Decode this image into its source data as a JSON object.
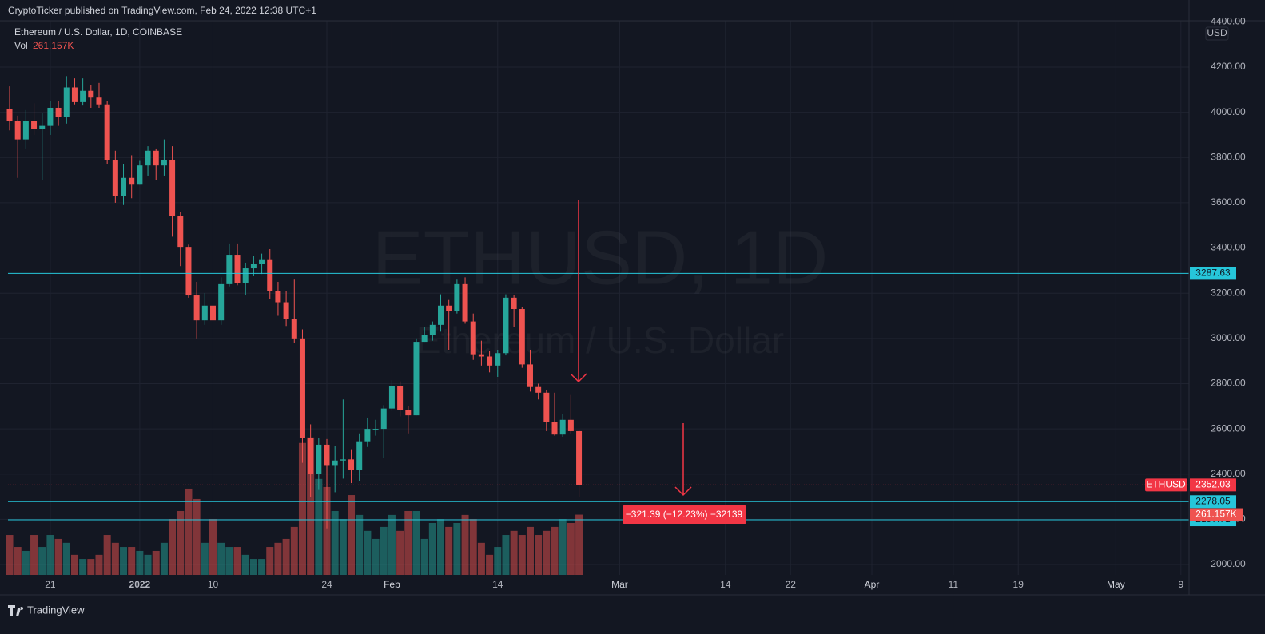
{
  "header": {
    "published": "CryptoTicker published on TradingView.com, Feb 24, 2022 12:38 UTC+1"
  },
  "footer": {
    "brand": "TradingView"
  },
  "chart_data": {
    "type": "candlestick",
    "title": "Ethereum / U.S. Dollar, 1D, COINBASE",
    "watermark": {
      "symbol": "ETHUSD, 1D",
      "name": "Ethereum / U.S. Dollar"
    },
    "y_unit": "USD",
    "up_color": "#26a69a",
    "down_color": "#ef5350",
    "x": [
      0,
      1,
      2,
      3,
      4,
      5,
      6,
      7,
      8,
      9,
      10,
      11,
      12,
      13,
      14,
      15,
      16,
      17,
      18,
      19,
      20,
      21,
      22,
      23,
      24,
      25,
      26,
      27,
      28,
      29,
      30,
      31,
      32,
      33,
      34,
      35,
      36,
      37,
      38,
      39,
      40,
      41,
      42,
      43,
      44,
      45,
      46,
      47,
      48,
      49,
      50,
      51,
      52,
      53,
      54,
      55,
      56,
      57,
      58,
      59,
      60,
      61,
      62,
      63,
      64,
      65,
      66,
      67,
      68,
      69,
      70
    ],
    "open": [
      4015,
      3960,
      3880,
      3960,
      3925,
      3940,
      4020,
      3980,
      4110,
      4045,
      4095,
      4065,
      4035,
      3790,
      3630,
      3710,
      3680,
      3765,
      3830,
      3765,
      3790,
      3540,
      3405,
      3190,
      3080,
      3145,
      3080,
      3240,
      3370,
      3245,
      3310,
      3330,
      3350,
      3210,
      3160,
      3085,
      3000,
      2560,
      2400,
      2530,
      2440,
      2460,
      2465,
      2420,
      2545,
      2600,
      2600,
      2690,
      2790,
      2685,
      2660,
      2985,
      3015,
      3060,
      3145,
      3120,
      3240,
      3075,
      2930,
      2920,
      2880,
      2935,
      3180,
      3130,
      2885,
      2785,
      2760,
      2630,
      2575,
      2640,
      2590
    ],
    "high": [
      4115,
      3985,
      4010,
      4040,
      3995,
      4050,
      4050,
      4160,
      4150,
      4150,
      4120,
      4130,
      4050,
      3830,
      3770,
      3810,
      3785,
      3850,
      3840,
      3880,
      3850,
      3560,
      3415,
      3250,
      3200,
      3160,
      3270,
      3420,
      3420,
      3335,
      3365,
      3375,
      3395,
      3250,
      3210,
      3260,
      3040,
      2620,
      2560,
      2555,
      2525,
      2730,
      2510,
      2580,
      2650,
      2640,
      2705,
      2815,
      2810,
      2700,
      3000,
      3050,
      3075,
      3195,
      3170,
      3260,
      3270,
      3110,
      2990,
      2945,
      2950,
      3195,
      3190,
      3140,
      2950,
      2800,
      2770,
      2760,
      2665,
      2750,
      2595
    ],
    "low": [
      3920,
      3710,
      3840,
      3900,
      3700,
      3900,
      3940,
      3950,
      4035,
      4030,
      4020,
      4020,
      3770,
      3600,
      3590,
      3620,
      3680,
      3720,
      3700,
      3720,
      3450,
      3320,
      3180,
      3000,
      3060,
      2930,
      3060,
      3230,
      3235,
      3190,
      3275,
      3285,
      3175,
      3100,
      3055,
      2980,
      2450,
      2300,
      2330,
      2160,
      2320,
      2380,
      2360,
      2370,
      2520,
      2570,
      2470,
      2680,
      2655,
      2580,
      2660,
      2985,
      2990,
      3030,
      2950,
      3110,
      3065,
      2905,
      2880,
      2850,
      2830,
      2925,
      3050,
      2870,
      2765,
      2730,
      2590,
      2570,
      2565,
      2580,
      2300
    ],
    "close": [
      3960,
      3880,
      3960,
      3925,
      3940,
      4020,
      3980,
      4110,
      4045,
      4095,
      4065,
      4035,
      3790,
      3630,
      3710,
      3680,
      3765,
      3830,
      3765,
      3790,
      3540,
      3405,
      3190,
      3080,
      3145,
      3080,
      3240,
      3370,
      3245,
      3310,
      3330,
      3350,
      3210,
      3160,
      3085,
      3000,
      2560,
      2400,
      2530,
      2440,
      2460,
      2465,
      2420,
      2545,
      2600,
      2600,
      2690,
      2790,
      2685,
      2660,
      2985,
      3015,
      3060,
      3145,
      3120,
      3240,
      3075,
      2930,
      2920,
      2880,
      2935,
      3180,
      3130,
      2885,
      2785,
      2760,
      2630,
      2575,
      2640,
      2590,
      2352
    ],
    "volume": {
      "label": "Vol",
      "last_label": "261.157K",
      "ylim": [
        0,
        900000
      ],
      "values": [
        173000,
        121000,
        104000,
        173000,
        121000,
        173000,
        156000,
        139000,
        87000,
        69000,
        69000,
        87000,
        173000,
        139000,
        121000,
        121000,
        104000,
        87000,
        104000,
        139000,
        242000,
        277000,
        374000,
        329000,
        139000,
        242000,
        139000,
        121000,
        121000,
        87000,
        69000,
        69000,
        121000,
        139000,
        156000,
        208000,
        572000,
        596000,
        416000,
        381000,
        277000,
        242000,
        346000,
        260000,
        191000,
        156000,
        208000,
        260000,
        191000,
        277000,
        277000,
        156000,
        225000,
        242000,
        208000,
        225000,
        260000,
        242000,
        139000,
        87000,
        121000,
        173000,
        191000,
        173000,
        208000,
        173000,
        191000,
        208000,
        242000,
        225000,
        261157
      ]
    },
    "xlim": [
      -1.18,
      145
    ],
    "xticks": [
      {
        "value": 5,
        "label": "21"
      },
      {
        "value": 16,
        "label": "2022"
      },
      {
        "value": 25,
        "label": "10"
      },
      {
        "value": 39,
        "label": "24"
      },
      {
        "value": 47,
        "label": "Feb"
      },
      {
        "value": 60,
        "label": "14"
      },
      {
        "value": 75,
        "label": "Mar"
      },
      {
        "value": 88,
        "label": "14"
      },
      {
        "value": 96,
        "label": "22"
      },
      {
        "value": 106,
        "label": "Apr"
      },
      {
        "value": 116,
        "label": "11"
      },
      {
        "value": 124,
        "label": "19"
      },
      {
        "value": 136,
        "label": "May"
      },
      {
        "value": 144,
        "label": "9"
      }
    ],
    "ylim": [
      1954.2,
      4404.8
    ],
    "yticks": [
      {
        "value": 2000,
        "label": "2000.00"
      },
      {
        "value": 2200,
        "label": "2200.00"
      },
      {
        "value": 2400,
        "label": "2400.00"
      },
      {
        "value": 2600,
        "label": "2600.00"
      },
      {
        "value": 2800,
        "label": "2800.00"
      },
      {
        "value": 3000,
        "label": "3000.00"
      },
      {
        "value": 3200,
        "label": "3200.00"
      },
      {
        "value": 3400,
        "label": "3400.00"
      },
      {
        "value": 3600,
        "label": "3600.00"
      },
      {
        "value": 3800,
        "label": "3800.00"
      },
      {
        "value": 4000,
        "label": "4000.00"
      },
      {
        "value": 4200,
        "label": "4200.00"
      },
      {
        "value": 4400,
        "label": "4400.00"
      }
    ],
    "grid": true,
    "levels": {
      "color": "#26c6da",
      "values": [
        3287.63,
        2278.05,
        2197.71
      ]
    },
    "last_price": {
      "symbol": "ETHUSD",
      "value": 2352.03,
      "color": "#f23645"
    },
    "measure_label": "−321.39 (−12.23%) −32139"
  }
}
